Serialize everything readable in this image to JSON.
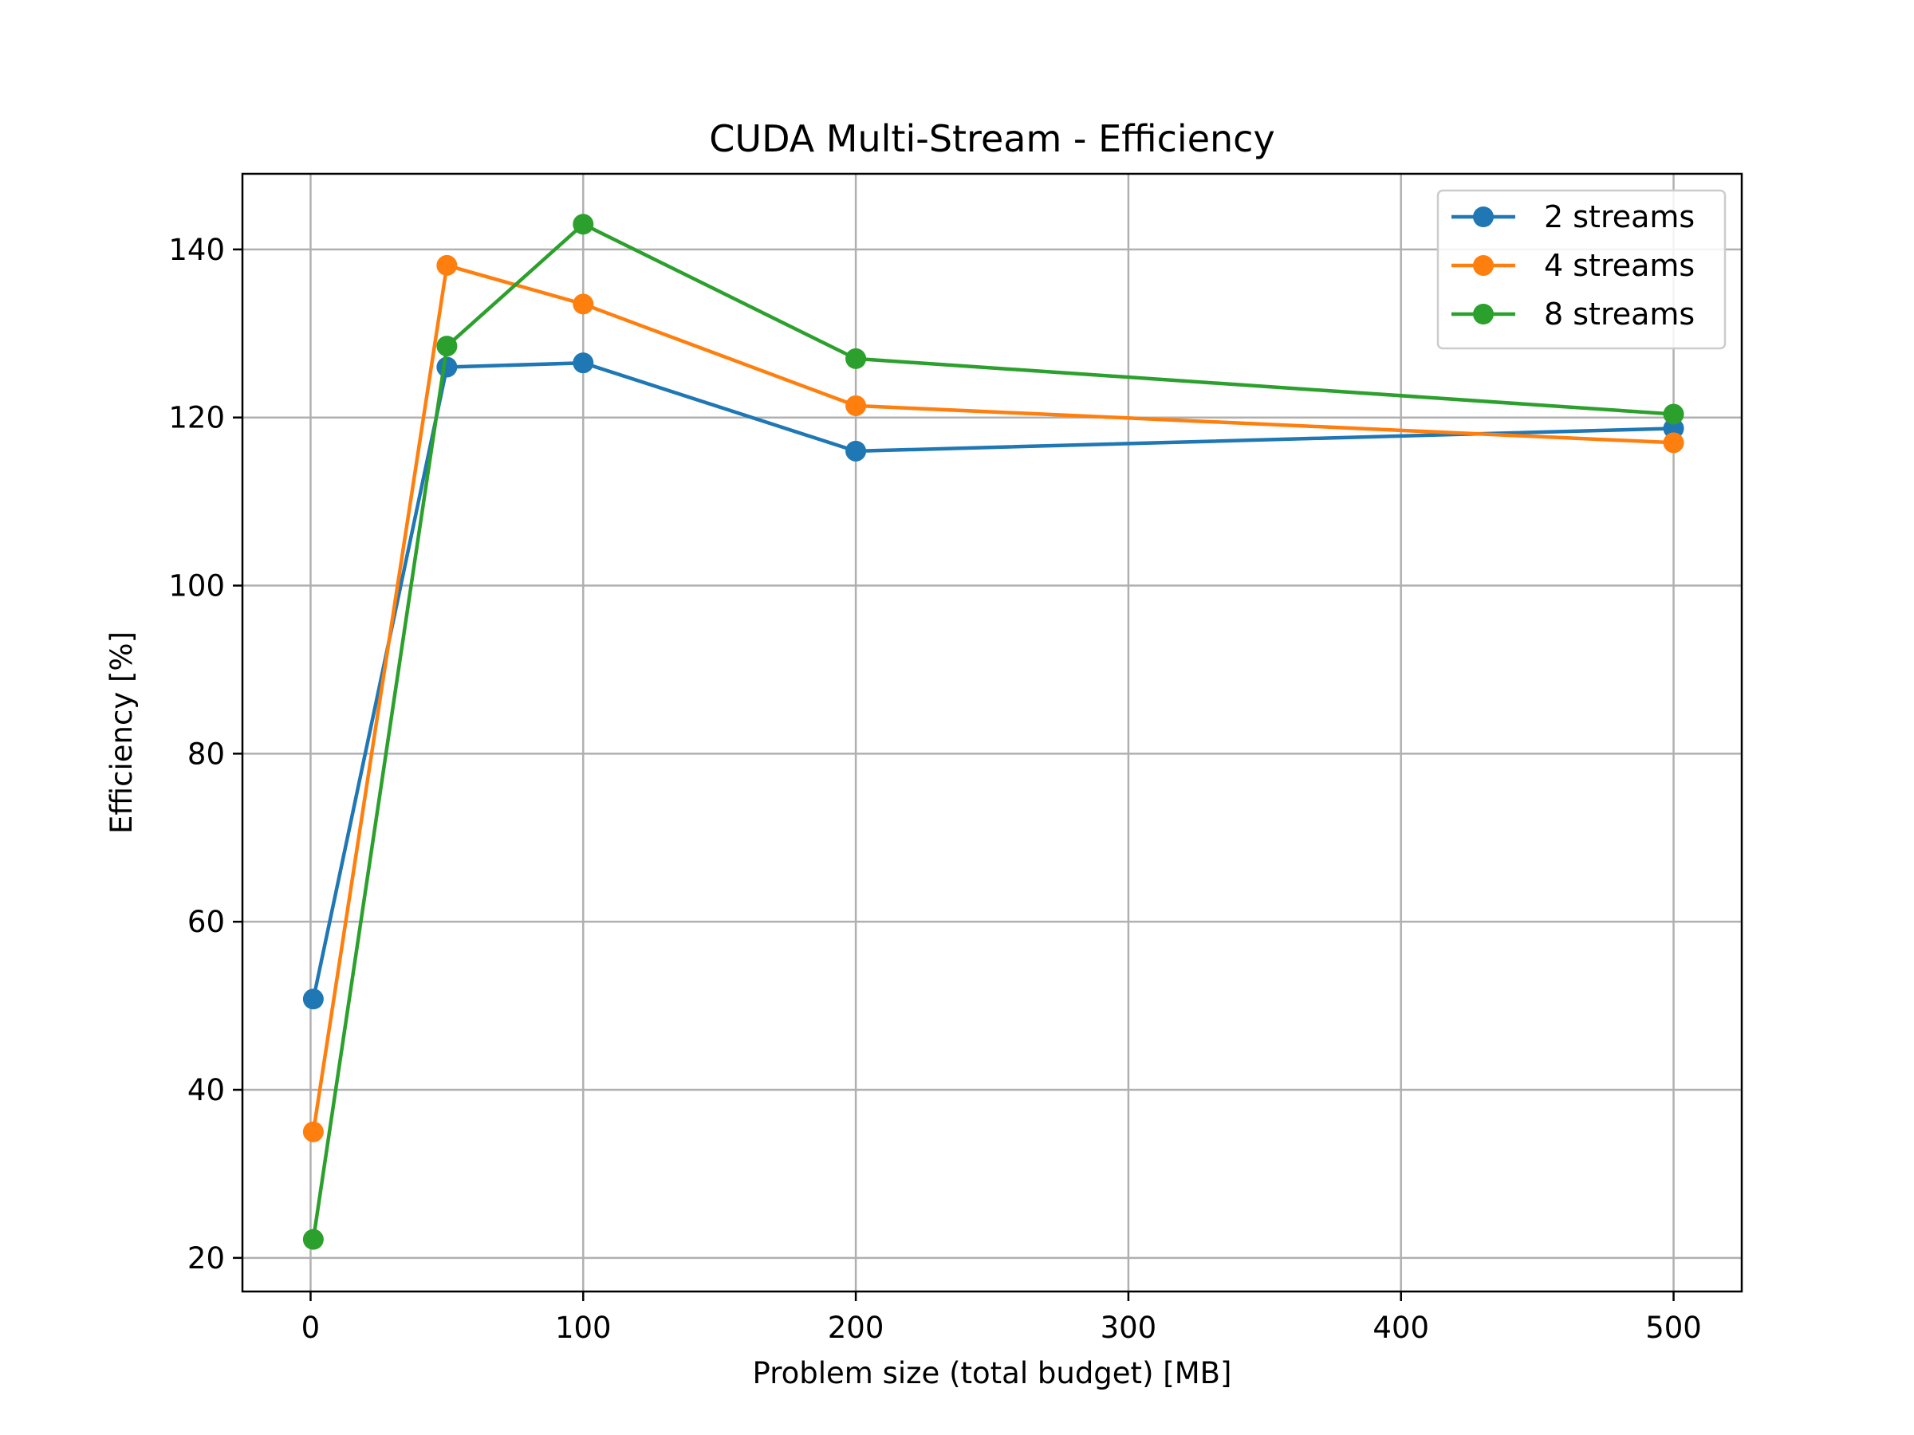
{
  "chart_data": {
    "type": "line",
    "title": "CUDA Multi-Stream - Efficiency",
    "xlabel": "Problem size (total budget) [MB]",
    "ylabel": "Efficiency [%]",
    "xlim": [
      -25,
      525
    ],
    "ylim": [
      16,
      149
    ],
    "xticks": [
      0,
      100,
      200,
      300,
      400,
      500
    ],
    "yticks": [
      20,
      40,
      60,
      80,
      100,
      120,
      140
    ],
    "grid": true,
    "legend_position": "top-right",
    "x": [
      1,
      50,
      100,
      200,
      500
    ],
    "series": [
      {
        "name": "2 streams",
        "color": "#1f77b4",
        "marker": "circle",
        "values": [
          50.8,
          126.0,
          126.5,
          116.0,
          118.7
        ]
      },
      {
        "name": "4 streams",
        "color": "#ff7f0e",
        "marker": "circle",
        "values": [
          35.0,
          138.1,
          133.5,
          121.4,
          117.0
        ]
      },
      {
        "name": "8 streams",
        "color": "#2ca02c",
        "marker": "circle",
        "values": [
          22.2,
          128.5,
          143.0,
          127.0,
          120.4
        ]
      }
    ]
  }
}
